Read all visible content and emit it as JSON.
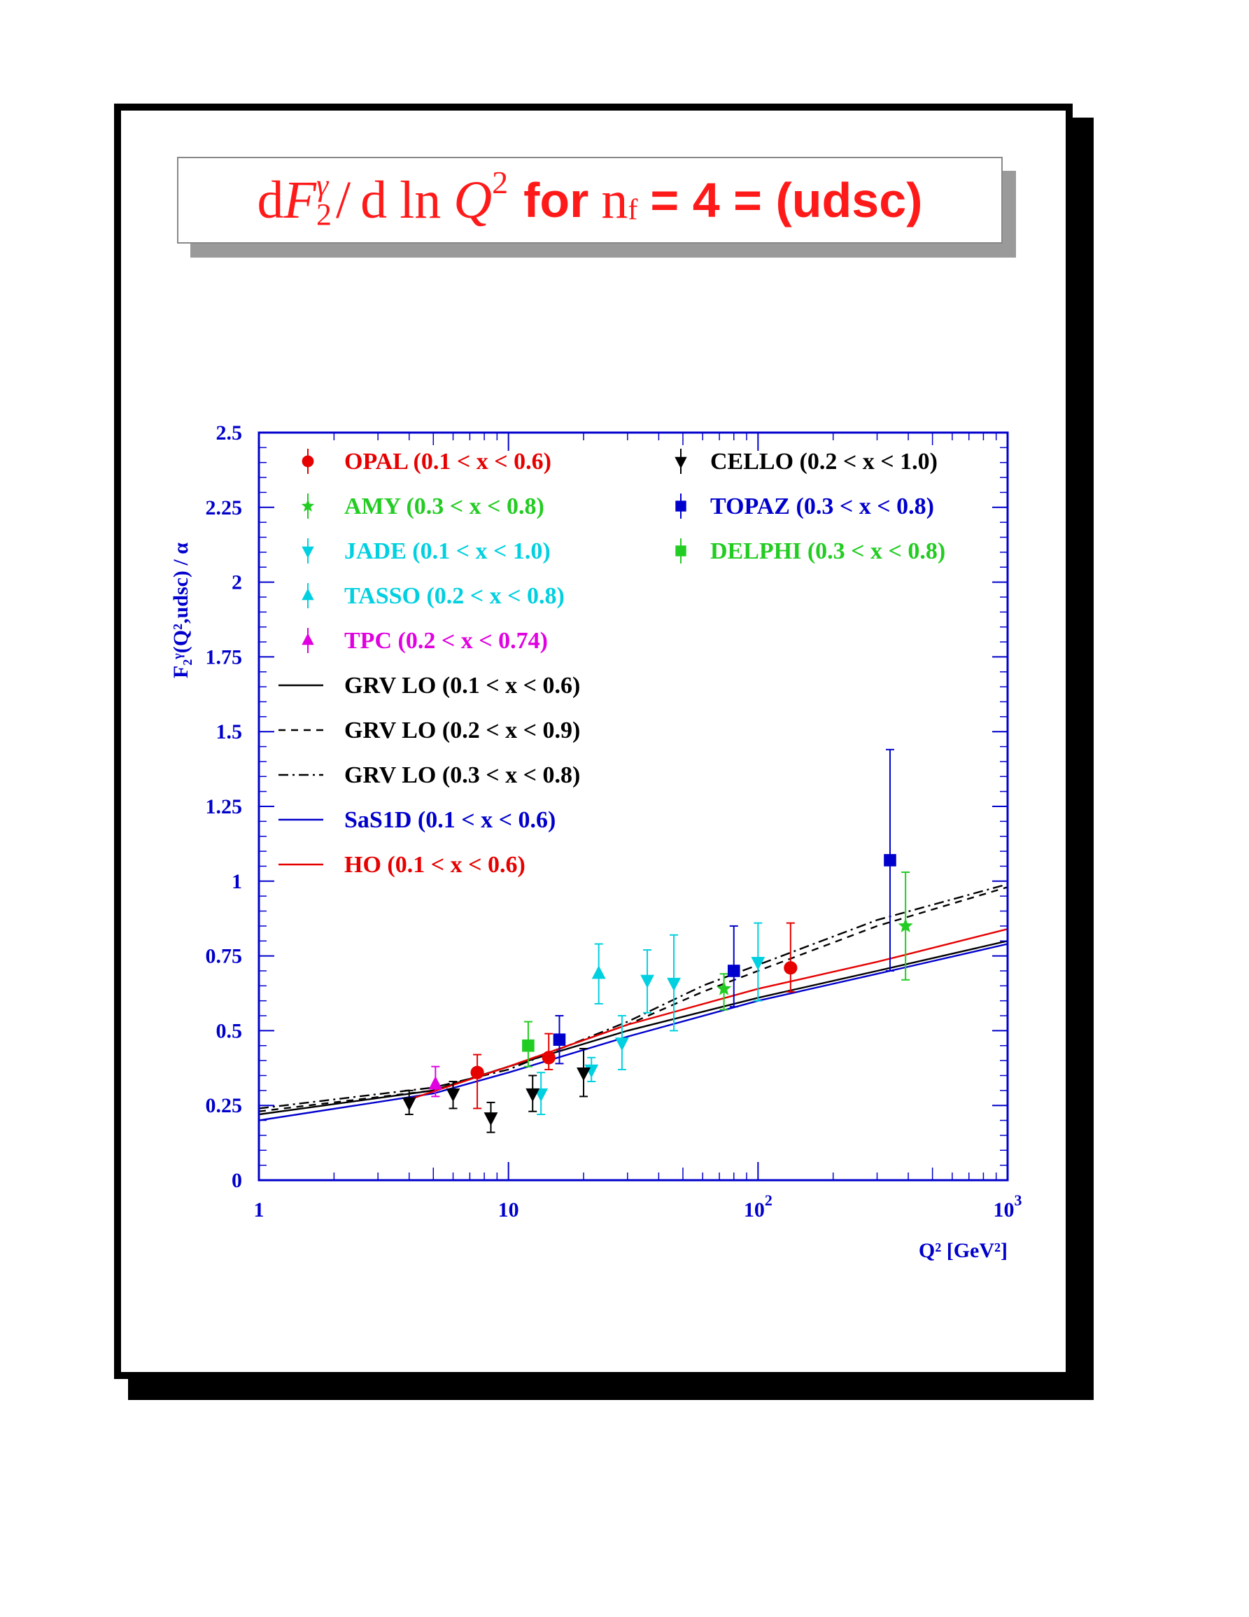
{
  "title": {
    "d1": "d",
    "F": "F",
    "sub2": "2",
    "supgamma": "γ",
    "slash": "/",
    "d2": "d",
    "ln": "ln",
    "Q": "Q",
    "supQ2": "2",
    "for": "for",
    "nf": "n",
    "nf_sub": "f",
    "rest": "= 4 = (udsc)"
  },
  "colors": {
    "axis": "#0000cc",
    "black": "#000000",
    "red": "#e60000",
    "green": "#22cc22",
    "cyan": "#00d0e0",
    "magenta": "#e000e0",
    "blue": "#0000cc",
    "title": "#ff1a1a"
  },
  "chart_data": {
    "type": "scatter",
    "x_scale": "log",
    "xlim": [
      1,
      1000
    ],
    "ylim": [
      0,
      2.5
    ],
    "ylabel": "F₂ᵞ(Q²,udsc) / α",
    "xlabel": "Q² [GeV²]",
    "x_ticks": [
      {
        "v": 1,
        "base": "1",
        "exp": ""
      },
      {
        "v": 10,
        "base": "10",
        "exp": ""
      },
      {
        "v": 100,
        "base": "10",
        "exp": "2"
      },
      {
        "v": 1000,
        "base": "10",
        "exp": "3"
      }
    ],
    "y_ticks": [
      {
        "v": 0,
        "label": "0"
      },
      {
        "v": 0.25,
        "label": "0.25"
      },
      {
        "v": 0.5,
        "label": "0.5"
      },
      {
        "v": 0.75,
        "label": "0.75"
      },
      {
        "v": 1,
        "label": "1"
      },
      {
        "v": 1.25,
        "label": "1.25"
      },
      {
        "v": 1.5,
        "label": "1.5"
      },
      {
        "v": 1.75,
        "label": "1.75"
      },
      {
        "v": 2,
        "label": "2"
      },
      {
        "v": 2.25,
        "label": "2.25"
      },
      {
        "v": 2.5,
        "label": "2.5"
      }
    ],
    "legend_placement": "top",
    "series": [
      {
        "name": "OPAL",
        "range": "(0.1 < x < 0.6)",
        "color": "#e60000",
        "marker": "circle",
        "legend_col": 0,
        "points": [
          {
            "x": 7.5,
            "y": 0.36,
            "lo": 0.24,
            "hi": 0.42
          },
          {
            "x": 14.5,
            "y": 0.41,
            "lo": 0.37,
            "hi": 0.49
          },
          {
            "x": 135,
            "y": 0.71,
            "lo": 0.63,
            "hi": 0.86
          }
        ]
      },
      {
        "name": "AMY",
        "range": "(0.3 < x < 0.8)",
        "color": "#22cc22",
        "marker": "star",
        "legend_col": 0,
        "points": [
          {
            "x": 73,
            "y": 0.64,
            "lo": 0.57,
            "hi": 0.69
          },
          {
            "x": 390,
            "y": 0.85,
            "lo": 0.67,
            "hi": 1.03
          }
        ]
      },
      {
        "name": "JADE",
        "range": "(0.1 < x < 1.0)",
        "color": "#00d0e0",
        "marker": "tri-down",
        "legend_col": 0,
        "points": [
          {
            "x": 13.5,
            "y": 0.29,
            "lo": 0.22,
            "hi": 0.36
          },
          {
            "x": 21.5,
            "y": 0.37,
            "lo": 0.33,
            "hi": 0.41
          },
          {
            "x": 28.5,
            "y": 0.46,
            "lo": 0.37,
            "hi": 0.55
          },
          {
            "x": 36,
            "y": 0.67,
            "lo": 0.56,
            "hi": 0.77
          },
          {
            "x": 46,
            "y": 0.66,
            "lo": 0.5,
            "hi": 0.82
          },
          {
            "x": 100,
            "y": 0.73,
            "lo": 0.6,
            "hi": 0.86
          }
        ]
      },
      {
        "name": "TASSO",
        "range": "(0.2 < x < 0.8)",
        "color": "#00d0e0",
        "marker": "tri-up",
        "legend_col": 0,
        "points": [
          {
            "x": 23,
            "y": 0.69,
            "lo": 0.59,
            "hi": 0.79
          }
        ]
      },
      {
        "name": "TPC",
        "range": "(0.2 < x < 0.74)",
        "color": "#e000e0",
        "marker": "tri-up",
        "legend_col": 0,
        "points": [
          {
            "x": 5.1,
            "y": 0.32,
            "lo": 0.28,
            "hi": 0.38
          }
        ]
      },
      {
        "name": "CELLO",
        "range": "(0.2 < x < 1.0)",
        "color": "#000000",
        "marker": "tri-down",
        "legend_col": 1,
        "points": [
          {
            "x": 4.0,
            "y": 0.26,
            "lo": 0.22,
            "hi": 0.3
          },
          {
            "x": 6.0,
            "y": 0.29,
            "lo": 0.24,
            "hi": 0.33
          },
          {
            "x": 8.5,
            "y": 0.21,
            "lo": 0.16,
            "hi": 0.26
          },
          {
            "x": 12.5,
            "y": 0.29,
            "lo": 0.23,
            "hi": 0.35
          },
          {
            "x": 20,
            "y": 0.36,
            "lo": 0.28,
            "hi": 0.44
          }
        ]
      },
      {
        "name": "TOPAZ",
        "range": "(0.3 < x < 0.8)",
        "color": "#0000cc",
        "marker": "square",
        "legend_col": 1,
        "points": [
          {
            "x": 16,
            "y": 0.47,
            "lo": 0.39,
            "hi": 0.55
          },
          {
            "x": 80,
            "y": 0.7,
            "lo": 0.58,
            "hi": 0.85
          },
          {
            "x": 338,
            "y": 1.07,
            "lo": 0.7,
            "hi": 1.44
          }
        ]
      },
      {
        "name": "DELPHI",
        "range": "(0.3 < x < 0.8)",
        "color": "#22cc22",
        "marker": "square",
        "legend_col": 1,
        "points": [
          {
            "x": 12,
            "y": 0.45,
            "lo": 0.38,
            "hi": 0.53
          }
        ]
      }
    ],
    "curves": [
      {
        "name": "GRV LO",
        "range": "(0.1 < x < 0.6)",
        "color": "#000000",
        "dash": "",
        "points": [
          {
            "x": 1,
            "y": 0.22
          },
          {
            "x": 5,
            "y": 0.3
          },
          {
            "x": 10,
            "y": 0.38
          },
          {
            "x": 30,
            "y": 0.5
          },
          {
            "x": 100,
            "y": 0.61
          },
          {
            "x": 300,
            "y": 0.7
          },
          {
            "x": 1000,
            "y": 0.8
          }
        ]
      },
      {
        "name": "GRV LO",
        "range": "(0.2 < x < 0.9)",
        "color": "#000000",
        "dash": "10,8",
        "points": [
          {
            "x": 1,
            "y": 0.23
          },
          {
            "x": 5,
            "y": 0.3
          },
          {
            "x": 10,
            "y": 0.38
          },
          {
            "x": 30,
            "y": 0.52
          },
          {
            "x": 60,
            "y": 0.63
          },
          {
            "x": 100,
            "y": 0.7
          },
          {
            "x": 300,
            "y": 0.85
          },
          {
            "x": 1000,
            "y": 0.98
          }
        ]
      },
      {
        "name": "GRV LO",
        "range": "(0.3 < x < 0.8)",
        "color": "#000000",
        "dash": "14,6,3,6",
        "points": [
          {
            "x": 1,
            "y": 0.24
          },
          {
            "x": 5,
            "y": 0.31
          },
          {
            "x": 10,
            "y": 0.37
          },
          {
            "x": 30,
            "y": 0.53
          },
          {
            "x": 60,
            "y": 0.65
          },
          {
            "x": 100,
            "y": 0.72
          },
          {
            "x": 300,
            "y": 0.87
          },
          {
            "x": 1000,
            "y": 0.99
          }
        ]
      },
      {
        "name": "SaS1D",
        "range": "(0.1 < x < 0.6)",
        "color": "#0000cc",
        "dash": "",
        "points": [
          {
            "x": 1,
            "y": 0.2
          },
          {
            "x": 5,
            "y": 0.29
          },
          {
            "x": 10,
            "y": 0.36
          },
          {
            "x": 30,
            "y": 0.48
          },
          {
            "x": 100,
            "y": 0.6
          },
          {
            "x": 300,
            "y": 0.69
          },
          {
            "x": 1000,
            "y": 0.79
          }
        ]
      },
      {
        "name": "HO",
        "range": "(0.1 < x < 0.6)",
        "color": "#e60000",
        "dash": "",
        "points": [
          {
            "x": 4,
            "y": 0.27
          },
          {
            "x": 10,
            "y": 0.38
          },
          {
            "x": 30,
            "y": 0.52
          },
          {
            "x": 100,
            "y": 0.64
          },
          {
            "x": 300,
            "y": 0.73
          },
          {
            "x": 1000,
            "y": 0.84
          }
        ]
      }
    ]
  }
}
